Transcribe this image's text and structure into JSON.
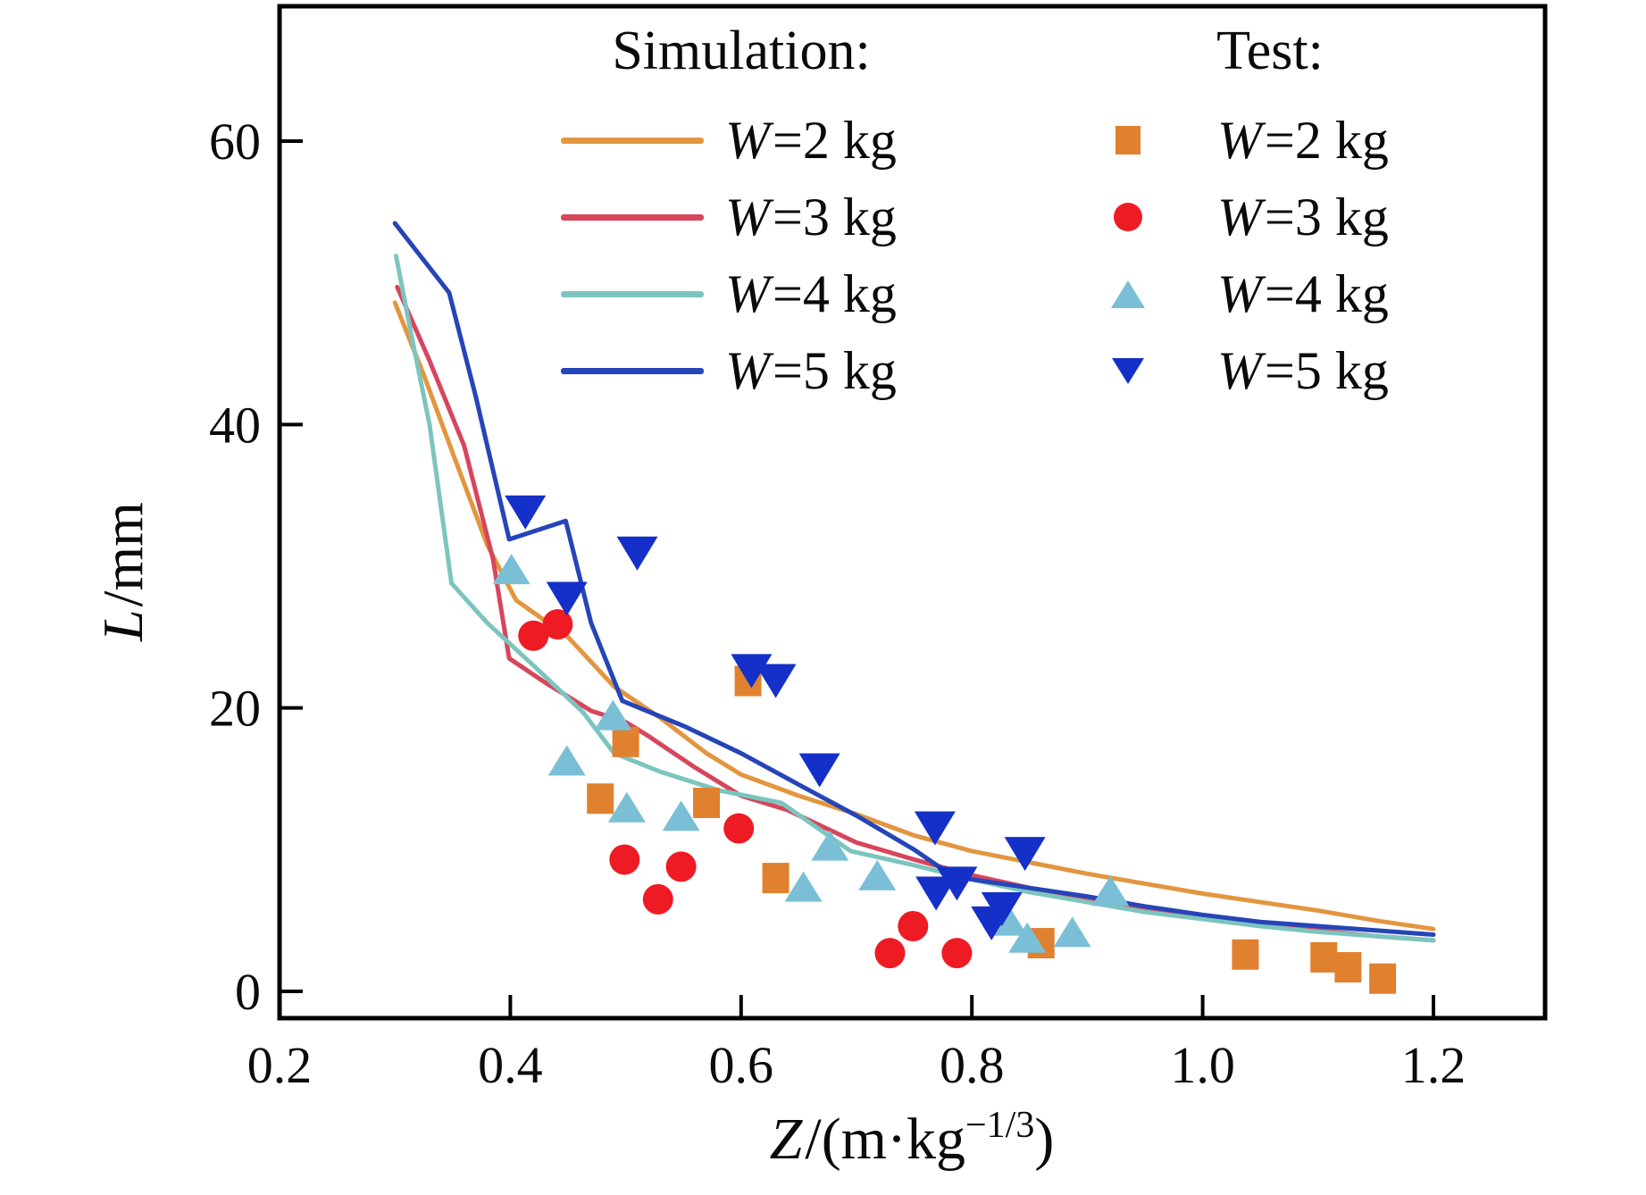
{
  "figure": {
    "background": "#ffffff",
    "frame_color": "#000000",
    "text_color": "#0a0a0a"
  },
  "axes": {
    "x": {
      "title_var": "Z",
      "title_rest": "/(m·kg",
      "title_sup": "−1/3",
      "title_close": ")",
      "tick_labels": [
        "0.2",
        "0.4",
        "0.6",
        "0.8",
        "1.0",
        "1.2"
      ],
      "tick_values": [
        0.2,
        0.4,
        0.6,
        0.8,
        1.0,
        1.2
      ]
    },
    "y": {
      "title_var": "L",
      "title_rest": "/mm",
      "tick_labels": [
        "0",
        "20",
        "40",
        "60"
      ],
      "tick_values": [
        0,
        20,
        40,
        60
      ]
    }
  },
  "legend": {
    "sim_heading": "Simulation:",
    "test_heading": "Test:",
    "sim_items": [
      {
        "var": "W",
        "rest": "=2 kg",
        "color": "#E2963F"
      },
      {
        "var": "W",
        "rest": "=3 kg",
        "color": "#D6465C"
      },
      {
        "var": "W",
        "rest": "=4 kg",
        "color": "#7CC5BE"
      },
      {
        "var": "W",
        "rest": "=5 kg",
        "color": "#2545B8"
      }
    ],
    "test_items": [
      {
        "var": "W",
        "rest": "=2 kg",
        "color": "#E0812F",
        "marker": "square"
      },
      {
        "var": "W",
        "rest": "=3 kg",
        "color": "#EE1B24",
        "marker": "circle"
      },
      {
        "var": "W",
        "rest": "=4 kg",
        "color": "#7BBFD6",
        "marker": "triangle-up"
      },
      {
        "var": "W",
        "rest": "=5 kg",
        "color": "#1430C8",
        "marker": "triangle-down"
      }
    ]
  },
  "chart_data": {
    "type": "line+scatter",
    "title": "",
    "xlabel": "Z/(m·kg^-1/3)",
    "ylabel": "L/mm",
    "xlim": [
      0.2,
      1.3
    ],
    "ylim": [
      -2,
      70
    ],
    "grid": false,
    "legend_position": "top-inside",
    "series": [
      {
        "name": "Simulation W=2 kg",
        "color": "#E2963F",
        "points": [
          [
            0.3,
            48.6
          ],
          [
            0.325,
            43.5
          ],
          [
            0.35,
            38.0
          ],
          [
            0.38,
            31.5
          ],
          [
            0.405,
            27.6
          ],
          [
            0.45,
            25.0
          ],
          [
            0.49,
            21.5
          ],
          [
            0.53,
            19.3
          ],
          [
            0.57,
            16.8
          ],
          [
            0.6,
            15.3
          ],
          [
            0.65,
            13.8
          ],
          [
            0.7,
            12.5
          ],
          [
            0.75,
            11.0
          ],
          [
            0.8,
            9.9
          ],
          [
            0.85,
            9.1
          ],
          [
            0.9,
            8.3
          ],
          [
            0.95,
            7.6
          ],
          [
            1.0,
            6.9
          ],
          [
            1.05,
            6.3
          ],
          [
            1.1,
            5.7
          ],
          [
            1.15,
            5.0
          ],
          [
            1.2,
            4.4
          ]
        ]
      },
      {
        "name": "Simulation W=3 kg",
        "color": "#D6465C",
        "points": [
          [
            0.302,
            49.7
          ],
          [
            0.33,
            44.5
          ],
          [
            0.36,
            38.5
          ],
          [
            0.385,
            30.5
          ],
          [
            0.399,
            23.5
          ],
          [
            0.43,
            21.8
          ],
          [
            0.47,
            19.8
          ],
          [
            0.5,
            19.0
          ],
          [
            0.52,
            18.0
          ],
          [
            0.56,
            15.8
          ],
          [
            0.6,
            13.8
          ],
          [
            0.64,
            12.8
          ],
          [
            0.7,
            10.5
          ],
          [
            0.75,
            9.3
          ],
          [
            0.8,
            8.2
          ],
          [
            0.85,
            7.3
          ],
          [
            0.9,
            6.5
          ],
          [
            0.95,
            5.8
          ],
          [
            1.0,
            5.2
          ],
          [
            1.05,
            4.7
          ],
          [
            1.1,
            4.3
          ],
          [
            1.15,
            3.9
          ],
          [
            1.2,
            3.6
          ]
        ]
      },
      {
        "name": "Simulation W=4 kg",
        "color": "#7CC5BE",
        "points": [
          [
            0.301,
            51.9
          ],
          [
            0.315,
            46.0
          ],
          [
            0.33,
            40.0
          ],
          [
            0.349,
            28.8
          ],
          [
            0.38,
            26.0
          ],
          [
            0.42,
            23.0
          ],
          [
            0.463,
            19.7
          ],
          [
            0.49,
            16.8
          ],
          [
            0.53,
            15.5
          ],
          [
            0.58,
            14.2
          ],
          [
            0.635,
            13.3
          ],
          [
            0.695,
            9.9
          ],
          [
            0.75,
            8.9
          ],
          [
            0.8,
            7.9
          ],
          [
            0.85,
            7.0
          ],
          [
            0.9,
            6.3
          ],
          [
            0.95,
            5.6
          ],
          [
            1.0,
            5.1
          ],
          [
            1.05,
            4.6
          ],
          [
            1.1,
            4.2
          ],
          [
            1.15,
            3.9
          ],
          [
            1.2,
            3.6
          ]
        ]
      },
      {
        "name": "Simulation W=5 kg",
        "color": "#2545B8",
        "points": [
          [
            0.3,
            54.2
          ],
          [
            0.347,
            49.3
          ],
          [
            0.37,
            42.0
          ],
          [
            0.399,
            31.9
          ],
          [
            0.448,
            33.2
          ],
          [
            0.47,
            26.0
          ],
          [
            0.497,
            20.5
          ],
          [
            0.551,
            18.7
          ],
          [
            0.6,
            16.8
          ],
          [
            0.652,
            14.5
          ],
          [
            0.7,
            12.4
          ],
          [
            0.75,
            10.0
          ],
          [
            0.784,
            8.1
          ],
          [
            0.85,
            7.3
          ],
          [
            0.9,
            6.7
          ],
          [
            0.95,
            6.0
          ],
          [
            1.0,
            5.4
          ],
          [
            1.05,
            4.9
          ],
          [
            1.1,
            4.6
          ],
          [
            1.15,
            4.3
          ],
          [
            1.2,
            4.0
          ]
        ]
      }
    ],
    "scatter": [
      {
        "name": "Test W=2 kg",
        "marker": "square",
        "color": "#E0812F",
        "points": [
          [
            0.478,
            13.6
          ],
          [
            0.5,
            17.6
          ],
          [
            0.57,
            13.3
          ],
          [
            0.606,
            21.9
          ],
          [
            0.63,
            8.0
          ],
          [
            0.86,
            3.4
          ],
          [
            1.037,
            2.6
          ],
          [
            1.105,
            2.4
          ],
          [
            1.126,
            1.7
          ],
          [
            1.156,
            0.9
          ]
        ]
      },
      {
        "name": "Test W=3 kg",
        "marker": "circle",
        "color": "#EE1B24",
        "points": [
          [
            0.42,
            25.1
          ],
          [
            0.441,
            25.9
          ],
          [
            0.499,
            9.3
          ],
          [
            0.528,
            6.5
          ],
          [
            0.548,
            8.8
          ],
          [
            0.598,
            11.5
          ],
          [
            0.729,
            2.7
          ],
          [
            0.749,
            4.6
          ],
          [
            0.787,
            2.7
          ]
        ]
      },
      {
        "name": "Test W=4 kg",
        "marker": "triangle-up",
        "color": "#7BBFD6",
        "points": [
          [
            0.401,
            29.8
          ],
          [
            0.449,
            16.3
          ],
          [
            0.489,
            19.5
          ],
          [
            0.501,
            13.0
          ],
          [
            0.548,
            12.4
          ],
          [
            0.654,
            7.4
          ],
          [
            0.677,
            10.3
          ],
          [
            0.718,
            8.2
          ],
          [
            0.832,
            5.0
          ],
          [
            0.848,
            3.8
          ],
          [
            0.887,
            4.2
          ],
          [
            0.92,
            7.1
          ]
        ]
      },
      {
        "name": "Test W=5 kg",
        "marker": "triangle-down",
        "color": "#1430C8",
        "points": [
          [
            0.413,
            33.8
          ],
          [
            0.449,
            27.7
          ],
          [
            0.51,
            30.9
          ],
          [
            0.609,
            22.6
          ],
          [
            0.63,
            21.9
          ],
          [
            0.668,
            15.6
          ],
          [
            0.768,
            11.5
          ],
          [
            0.769,
            6.9
          ],
          [
            0.787,
            7.6
          ],
          [
            0.817,
            4.8
          ],
          [
            0.826,
            5.8
          ],
          [
            0.846,
            9.7
          ]
        ]
      }
    ]
  }
}
